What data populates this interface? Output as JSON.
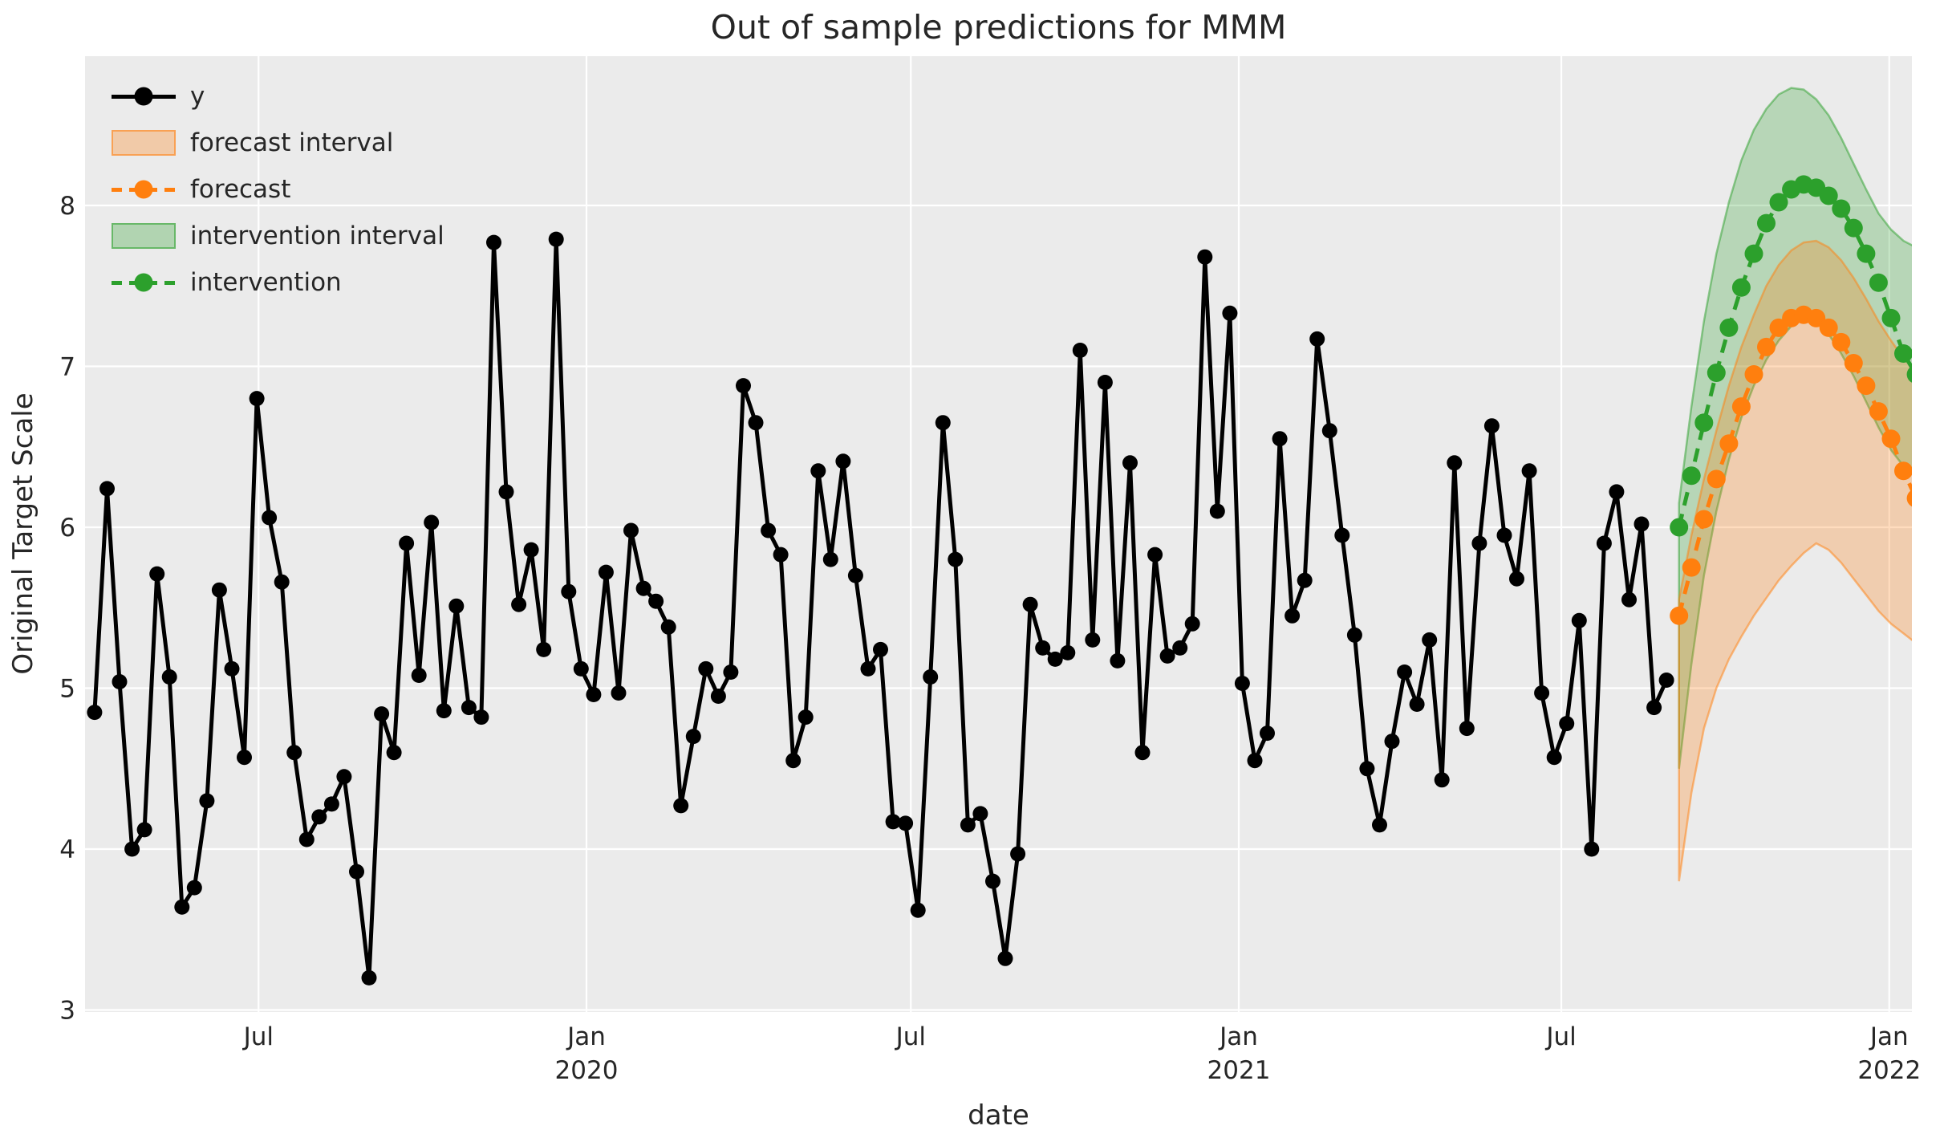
{
  "chart_data": {
    "type": "line",
    "title": "Out of sample predictions for MMM",
    "xlabel": "date",
    "ylabel": "Original Target Scale",
    "grid": true,
    "background": "#ebebeb",
    "gridline_color": "#ffffff",
    "text_color": "#262626",
    "ylim": [
      2.99,
      8.93
    ],
    "xlim": [
      "2019-03-25",
      "2022-01-14"
    ],
    "y_ticks": [
      3,
      4,
      5,
      6,
      7,
      8
    ],
    "x_ticks": [
      {
        "date": "2019-07-01",
        "label": "Jul",
        "sub": ""
      },
      {
        "date": "2020-01-01",
        "label": "Jan",
        "sub": "2020"
      },
      {
        "date": "2020-07-01",
        "label": "Jul",
        "sub": ""
      },
      {
        "date": "2021-01-01",
        "label": "Jan",
        "sub": "2021"
      },
      {
        "date": "2021-07-01",
        "label": "Jul",
        "sub": ""
      },
      {
        "date": "2022-01-01",
        "label": "Jan",
        "sub": "2022"
      }
    ],
    "legend": [
      {
        "label": "y",
        "kind": "line",
        "dashed": false,
        "color": "#000000"
      },
      {
        "label": "forecast interval",
        "kind": "patch",
        "color": "#ff7f0e"
      },
      {
        "label": "forecast",
        "kind": "line",
        "dashed": true,
        "color": "#ff7f0e"
      },
      {
        "label": "intervention interval",
        "kind": "patch",
        "color": "#2ca02c"
      },
      {
        "label": "intervention",
        "kind": "line",
        "dashed": true,
        "color": "#2ca02c"
      }
    ],
    "series": {
      "y": {
        "name": "y",
        "color": "#000000",
        "start": "2019-03-31",
        "freq_days": 7,
        "values": [
          4.85,
          6.24,
          5.04,
          4.0,
          4.12,
          5.71,
          5.07,
          3.64,
          3.76,
          4.3,
          5.61,
          5.12,
          4.57,
          6.8,
          6.06,
          5.66,
          4.6,
          4.06,
          4.2,
          4.28,
          4.45,
          3.86,
          3.2,
          4.84,
          4.6,
          5.9,
          5.08,
          6.03,
          4.86,
          5.51,
          4.88,
          4.82,
          7.77,
          6.22,
          5.52,
          5.86,
          5.24,
          7.79,
          5.6,
          5.12,
          4.96,
          5.72,
          4.97,
          5.98,
          5.62,
          5.54,
          5.38,
          4.27,
          4.7,
          5.12,
          4.95,
          5.1,
          6.88,
          6.65,
          5.98,
          5.83,
          4.55,
          4.82,
          6.35,
          5.8,
          6.41,
          5.7,
          5.12,
          5.24,
          4.17,
          4.16,
          3.62,
          5.07,
          6.65,
          5.8,
          4.15,
          4.22,
          3.8,
          3.32,
          3.97,
          5.52,
          5.25,
          5.18,
          5.22,
          7.1,
          5.3,
          6.9,
          5.17,
          6.4,
          4.6,
          5.83,
          5.2,
          5.25,
          5.4,
          7.68,
          6.1,
          7.33,
          5.03,
          4.55,
          4.72,
          6.55,
          5.45,
          5.67,
          7.17,
          6.6,
          5.95,
          5.33,
          4.5,
          4.15,
          4.67,
          5.1,
          4.9,
          5.3,
          4.43,
          6.4,
          4.75,
          5.9,
          6.63,
          5.95,
          5.68,
          6.35,
          4.97,
          4.57,
          4.78,
          5.42,
          4.0,
          5.9,
          6.22,
          5.55,
          6.02,
          4.88,
          5.05
        ]
      },
      "forecast": {
        "name": "forecast",
        "color": "#ff7f0e",
        "start": "2021-09-05",
        "freq_days": 7,
        "values": [
          5.45,
          5.75,
          6.05,
          6.3,
          6.52,
          6.75,
          6.95,
          7.12,
          7.24,
          7.3,
          7.32,
          7.3,
          7.24,
          7.15,
          7.02,
          6.88,
          6.72,
          6.55,
          6.35,
          6.18
        ],
        "lower": [
          3.8,
          4.35,
          4.75,
          5.0,
          5.18,
          5.32,
          5.45,
          5.56,
          5.67,
          5.76,
          5.84,
          5.9,
          5.86,
          5.78,
          5.68,
          5.58,
          5.48,
          5.4,
          5.34,
          5.28
        ],
        "upper": [
          5.55,
          5.95,
          6.3,
          6.6,
          6.88,
          7.12,
          7.32,
          7.5,
          7.63,
          7.72,
          7.77,
          7.78,
          7.74,
          7.66,
          7.55,
          7.42,
          7.28,
          7.16,
          7.05,
          6.98
        ]
      },
      "intervention": {
        "name": "intervention",
        "color": "#2ca02c",
        "start": "2021-09-05",
        "freq_days": 7,
        "values": [
          6.0,
          6.32,
          6.65,
          6.96,
          7.24,
          7.49,
          7.7,
          7.89,
          8.02,
          8.1,
          8.13,
          8.11,
          8.06,
          7.98,
          7.86,
          7.7,
          7.52,
          7.3,
          7.08,
          6.95
        ],
        "lower": [
          4.5,
          5.15,
          5.7,
          6.1,
          6.42,
          6.68,
          6.88,
          7.04,
          7.16,
          7.25,
          7.3,
          7.28,
          7.2,
          7.08,
          6.94,
          6.78,
          6.62,
          6.48,
          6.38,
          6.32
        ],
        "upper": [
          6.15,
          6.75,
          7.28,
          7.7,
          8.02,
          8.28,
          8.47,
          8.6,
          8.69,
          8.73,
          8.72,
          8.66,
          8.56,
          8.42,
          8.26,
          8.1,
          7.95,
          7.85,
          7.78,
          7.74
        ]
      }
    }
  }
}
